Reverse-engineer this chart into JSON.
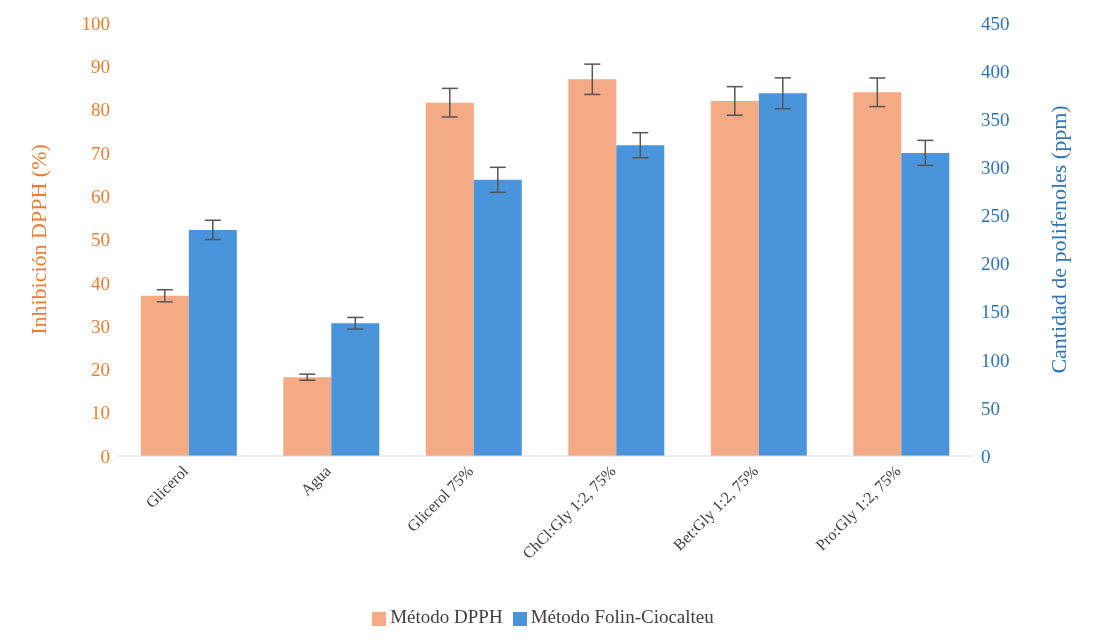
{
  "chart_data": {
    "type": "bar",
    "categories": [
      "Glicerol",
      "Agua",
      "Glicerol 75%",
      "ChCl:Gly 1:2, 75%",
      "Bet:Gly 1:2, 75%",
      "Pro:Gly 1:2, 75%"
    ],
    "series": [
      {
        "name": "Método DPPH",
        "color": "#f4aa84",
        "values": [
          37,
          18.2,
          81.6,
          87,
          82,
          84
        ],
        "errors": [
          1.4,
          0.7,
          3.3,
          3.5,
          3.3,
          3.3
        ]
      },
      {
        "name": "Método Folin-Ciocalteu",
        "color": "#4a94db",
        "axis": "y2",
        "values": [
          235,
          138,
          287,
          323,
          377,
          315
        ],
        "errors": [
          10,
          6,
          13,
          13,
          16,
          13
        ]
      }
    ],
    "ylabel": "Inhibición DPPH (%)",
    "y2label": "Cantidad de polifenoles (ppm)",
    "ylim": [
      0,
      100
    ],
    "yticks": [
      0,
      10,
      20,
      30,
      40,
      50,
      60,
      70,
      80,
      90,
      100
    ],
    "y2lim": [
      0,
      450
    ],
    "y2ticks": [
      0,
      50,
      100,
      150,
      200,
      250,
      300,
      350,
      400,
      450
    ],
    "legend": "bottom"
  }
}
